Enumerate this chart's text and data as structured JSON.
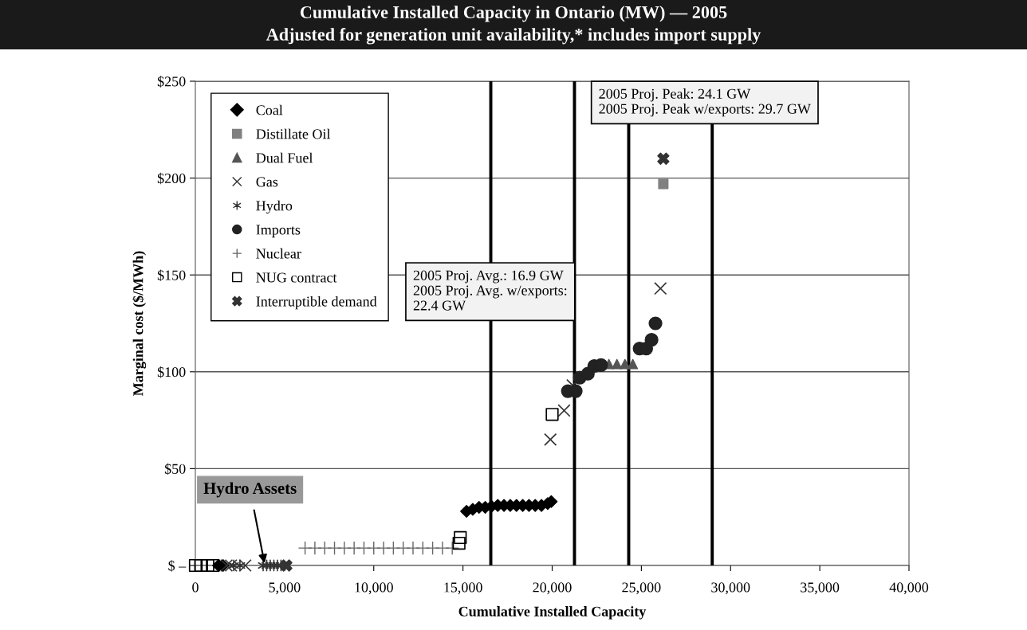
{
  "chart_data": {
    "type": "scatter",
    "title": "Cumulative Installed Capacity in Ontario (MW) — 2005",
    "subtitle": "Adjusted for generation unit availability,* includes import supply",
    "xlabel": "Cumulative Installed Capacity",
    "ylabel": "Marginal cost ($/MWh)",
    "xlim": [
      0,
      40000
    ],
    "xticks": [
      0,
      {
        "value": 5000,
        "label": "5,000"
      },
      {
        "value": 10000,
        "label": "10,000"
      },
      {
        "value": 15000,
        "label": "15,000"
      },
      {
        "value": 20000,
        "label": "20,000"
      },
      {
        "value": 25000,
        "label": "25,000"
      },
      {
        "value": 30000,
        "label": "30,000"
      },
      {
        "value": 35000,
        "label": "35,000"
      },
      {
        "value": 40000,
        "label": "40,000"
      }
    ],
    "ylim": [
      0,
      250
    ],
    "yticks": [
      {
        "value": 0,
        "label": "$ –"
      },
      {
        "value": 50,
        "label": "$50"
      },
      {
        "value": 100,
        "label": "$100"
      },
      {
        "value": 150,
        "label": "$150"
      },
      {
        "value": 200,
        "label": "$200"
      },
      {
        "value": 250,
        "label": "$250"
      }
    ],
    "grid": "y",
    "legend": "top left",
    "series": [
      {
        "name": "Coal",
        "marker": "diamond",
        "color": "#000000",
        "x": [
          1300,
          1550,
          15200,
          15550,
          15900,
          16250,
          16600,
          16950,
          17300,
          17650,
          18000,
          18350,
          18700,
          19050,
          19400,
          19750,
          19950
        ],
        "values": [
          0,
          0,
          28,
          29,
          30,
          30,
          30.5,
          31,
          31,
          31,
          31,
          31,
          31,
          31,
          31,
          32,
          33
        ]
      },
      {
        "name": "Distillate Oil",
        "marker": "square",
        "color": "#808080",
        "x": [
          26230
        ],
        "values": [
          197
        ]
      },
      {
        "name": "Dual Fuel",
        "marker": "triangle",
        "color": "#555555",
        "x": [
          23180,
          23630,
          24080,
          24520
        ],
        "values": [
          104,
          104,
          104,
          104
        ]
      },
      {
        "name": "Gas",
        "marker": "cross",
        "color": "#333333",
        "x": [
          1750,
          2000,
          2800,
          19900,
          20670,
          21150,
          26070
        ],
        "values": [
          0,
          0,
          0,
          65,
          80,
          93,
          143
        ]
      },
      {
        "name": "Hydro",
        "marker": "cross",
        "color": "#333333",
        "x": [
          2150,
          2500,
          3800,
          4000,
          4200,
          4400,
          4600,
          4800
        ],
        "values": [
          0,
          0,
          0,
          0,
          0,
          0,
          0,
          0
        ]
      },
      {
        "name": "Imports",
        "marker": "circle",
        "color": "#222222",
        "x": [
          20880,
          21320,
          21550,
          22000,
          22360,
          22740,
          24900,
          25270,
          25570,
          25790
        ],
        "values": [
          90,
          90,
          97,
          99,
          103,
          103.5,
          112,
          112,
          116.5,
          125
        ]
      },
      {
        "name": "Nuclear",
        "marker": "plus",
        "color": "#666666",
        "x": [
          6150,
          6700,
          7250,
          7800,
          8350,
          8900,
          9450,
          10000,
          10550,
          11100,
          11650,
          12200,
          12750,
          13300,
          13850,
          14400
        ],
        "values": [
          9,
          9,
          9,
          9,
          9,
          9,
          9,
          9,
          9,
          9,
          9,
          9,
          9,
          9,
          9,
          9
        ]
      },
      {
        "name": "NUG contract",
        "marker": "square",
        "color": "#000000",
        "x": [
          0,
          300,
          700,
          1000,
          14780,
          14850,
          20000
        ],
        "values": [
          0,
          0,
          0,
          0,
          11.5,
          14.4,
          78
        ]
      },
      {
        "name": "Interruptible demand",
        "marker": "cross",
        "color": "#333333",
        "x": [
          5100,
          26230
        ],
        "values": [
          0,
          210
        ]
      }
    ],
    "ref_lines": [
      {
        "axis": "x",
        "value": 16560,
        "color": "#000000"
      },
      {
        "axis": "x",
        "value": 21250,
        "color": "#000000"
      },
      {
        "axis": "x",
        "value": 24290,
        "color": "#000000"
      },
      {
        "axis": "x",
        "value": 28970,
        "color": "#000000"
      }
    ],
    "annotations": [
      "2005 Proj. Avg.: 16.9 GW\n2005 Proj. Avg. w/exports:\n22.4 GW",
      "2005 Proj. Peak: 24.1 GW\n2005 Proj. Peak w/exports: 29.7 GW",
      {
        "text": "Hydro Assets",
        "x": 3900,
        "y": 0
      }
    ]
  }
}
